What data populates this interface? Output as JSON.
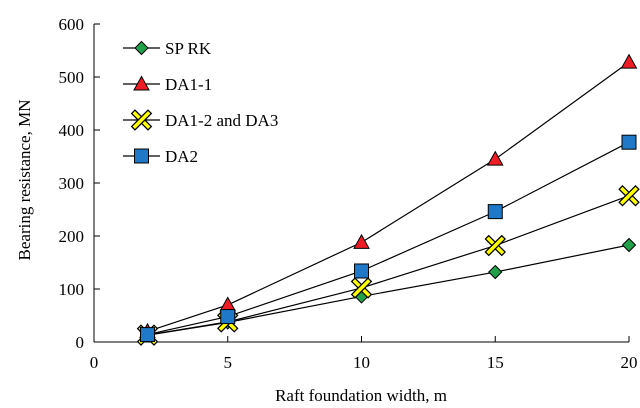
{
  "chart_data": {
    "type": "line",
    "title": "",
    "xlabel": "Raft foundation width, m",
    "ylabel": "Bearing resistance, MN",
    "xlim": [
      0,
      20
    ],
    "ylim": [
      0,
      600
    ],
    "xticks": [
      0,
      5,
      10,
      15,
      20
    ],
    "yticks": [
      0,
      100,
      200,
      300,
      400,
      500,
      600
    ],
    "grid": false,
    "legend_position": "top-left",
    "x": [
      2,
      5,
      10,
      15,
      20
    ],
    "series": [
      {
        "name": "SP RK",
        "marker": "diamond",
        "color": "#22a04a",
        "values": [
          13,
          37,
          86,
          132,
          183
        ]
      },
      {
        "name": "DA1-1",
        "marker": "triangle",
        "color": "#ee1c24",
        "values": [
          20,
          70,
          188,
          345,
          528
        ]
      },
      {
        "name": "DA1-2 and DA3",
        "marker": "x",
        "color": "#ffff00",
        "values": [
          13,
          38,
          102,
          182,
          276
        ]
      },
      {
        "name": "DA2",
        "marker": "square",
        "color": "#1f78c8",
        "values": [
          14,
          48,
          134,
          246,
          377
        ]
      }
    ]
  }
}
